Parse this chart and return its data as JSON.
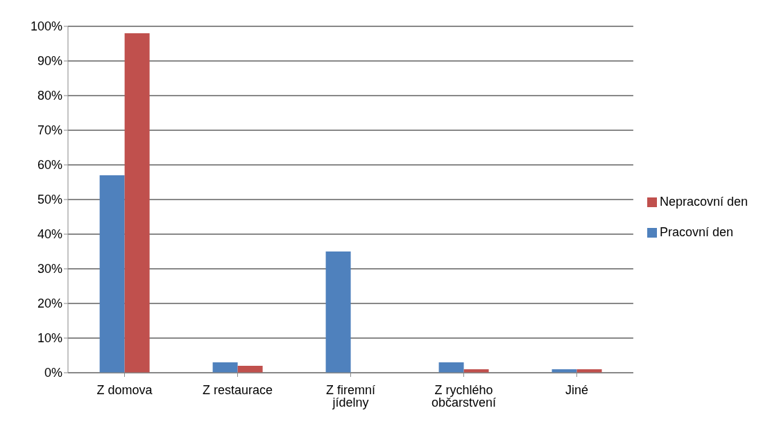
{
  "chart_data": {
    "type": "bar",
    "categories": [
      "Z domova",
      "Z restaurace",
      "Z firemní jídelny",
      "Z rychlého občarstvení",
      "Jiné"
    ],
    "series": [
      {
        "name": "Pracovní den",
        "color": "#4f81bd",
        "values": [
          57,
          3,
          35,
          3,
          1
        ]
      },
      {
        "name": "Nepracovní den",
        "color": "#c0504d",
        "values": [
          98,
          2,
          0,
          1,
          1
        ]
      }
    ],
    "ylim": [
      0,
      100
    ],
    "yticks": [
      {
        "value": 0,
        "label": "0%"
      },
      {
        "value": 10,
        "label": "10%"
      },
      {
        "value": 20,
        "label": "20%"
      },
      {
        "value": 30,
        "label": "30%"
      },
      {
        "value": 40,
        "label": "40%"
      },
      {
        "value": 50,
        "label": "50%"
      },
      {
        "value": 60,
        "label": "60%"
      },
      {
        "value": 70,
        "label": "70%"
      },
      {
        "value": 80,
        "label": "80%"
      },
      {
        "value": 90,
        "label": "90%"
      },
      {
        "value": 100,
        "label": "100%"
      }
    ],
    "grid": "y",
    "legend": "right"
  }
}
